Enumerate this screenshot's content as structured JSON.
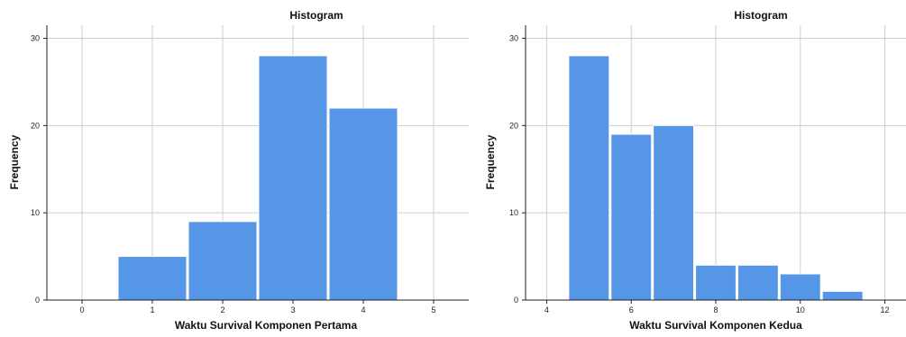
{
  "chart_data": [
    {
      "type": "bar",
      "title": "Histogram",
      "xlabel": "Waktu Survival Komponen Pertama",
      "ylabel": "Frequency",
      "xlim": [
        -0.5,
        5.5
      ],
      "ylim": [
        0,
        31.5
      ],
      "xticks": [
        0,
        1,
        2,
        3,
        4,
        5
      ],
      "yticks": [
        0,
        10,
        20,
        30
      ],
      "bin_width": 1,
      "x": [
        1,
        2,
        3,
        4
      ],
      "values": [
        5,
        9,
        28,
        22
      ],
      "grid": true,
      "bar_color": "#5596e6"
    },
    {
      "type": "bar",
      "title": "Histogram",
      "xlabel": "Waktu Survival Komponen Kedua",
      "ylabel": "Frequency",
      "xlim": [
        3.5,
        12.5
      ],
      "ylim": [
        0,
        31.5
      ],
      "xticks": [
        4,
        6,
        8,
        10,
        12
      ],
      "yticks": [
        0,
        10,
        20,
        30
      ],
      "bin_width": 1,
      "x": [
        5,
        6,
        7,
        8,
        9,
        10,
        11
      ],
      "values": [
        28,
        19,
        20,
        4,
        4,
        3,
        1
      ],
      "grid": true,
      "bar_color": "#5596e6"
    }
  ]
}
